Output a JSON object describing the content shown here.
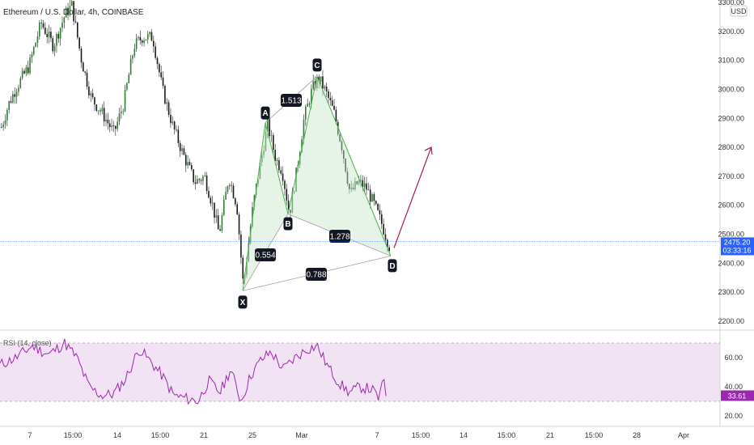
{
  "chart_data": [
    {
      "type": "candlestick",
      "title": "Ethereum / U.S. Dollar, 4h, COINBASE",
      "currency": "USD",
      "ylim": [
        2150,
        3320
      ],
      "y_ticks": [
        "3300.00",
        "3200.00",
        "3100.00",
        "3000.00",
        "2900.00",
        "2800.00",
        "2700.00",
        "2600.00",
        "2500.00",
        "2400.00",
        "2300.00",
        "2200.00"
      ],
      "x_ticks": [
        "7",
        "15:00",
        "14",
        "15:00",
        "21",
        "25",
        "Mar",
        "15:00",
        "7",
        "15:00",
        "14",
        "15:00",
        "21",
        "15:00",
        "28",
        "Apr"
      ],
      "last_price": "2475.20",
      "countdown": "03:33:16",
      "harmonic_pattern": {
        "points": [
          {
            "label": "X",
            "price": 2305
          },
          {
            "label": "A",
            "price": 2885
          },
          {
            "label": "B",
            "price": 2570
          },
          {
            "label": "C",
            "price": 3045
          },
          {
            "label": "D",
            "price": 2425
          }
        ],
        "ratios": [
          {
            "label": "XB",
            "value": "0.554"
          },
          {
            "label": "AC",
            "value": "1.513"
          },
          {
            "label": "BD",
            "value": "1.278"
          },
          {
            "label": "XD",
            "value": "0.788"
          }
        ],
        "projection_target": 2800
      }
    },
    {
      "type": "line",
      "title": "RSI (14, close)",
      "ylim": [
        10,
        80
      ],
      "y_ticks": [
        "60.00",
        "40.00",
        "20.00"
      ],
      "band": [
        30,
        70
      ],
      "last_value": "33.61"
    }
  ]
}
